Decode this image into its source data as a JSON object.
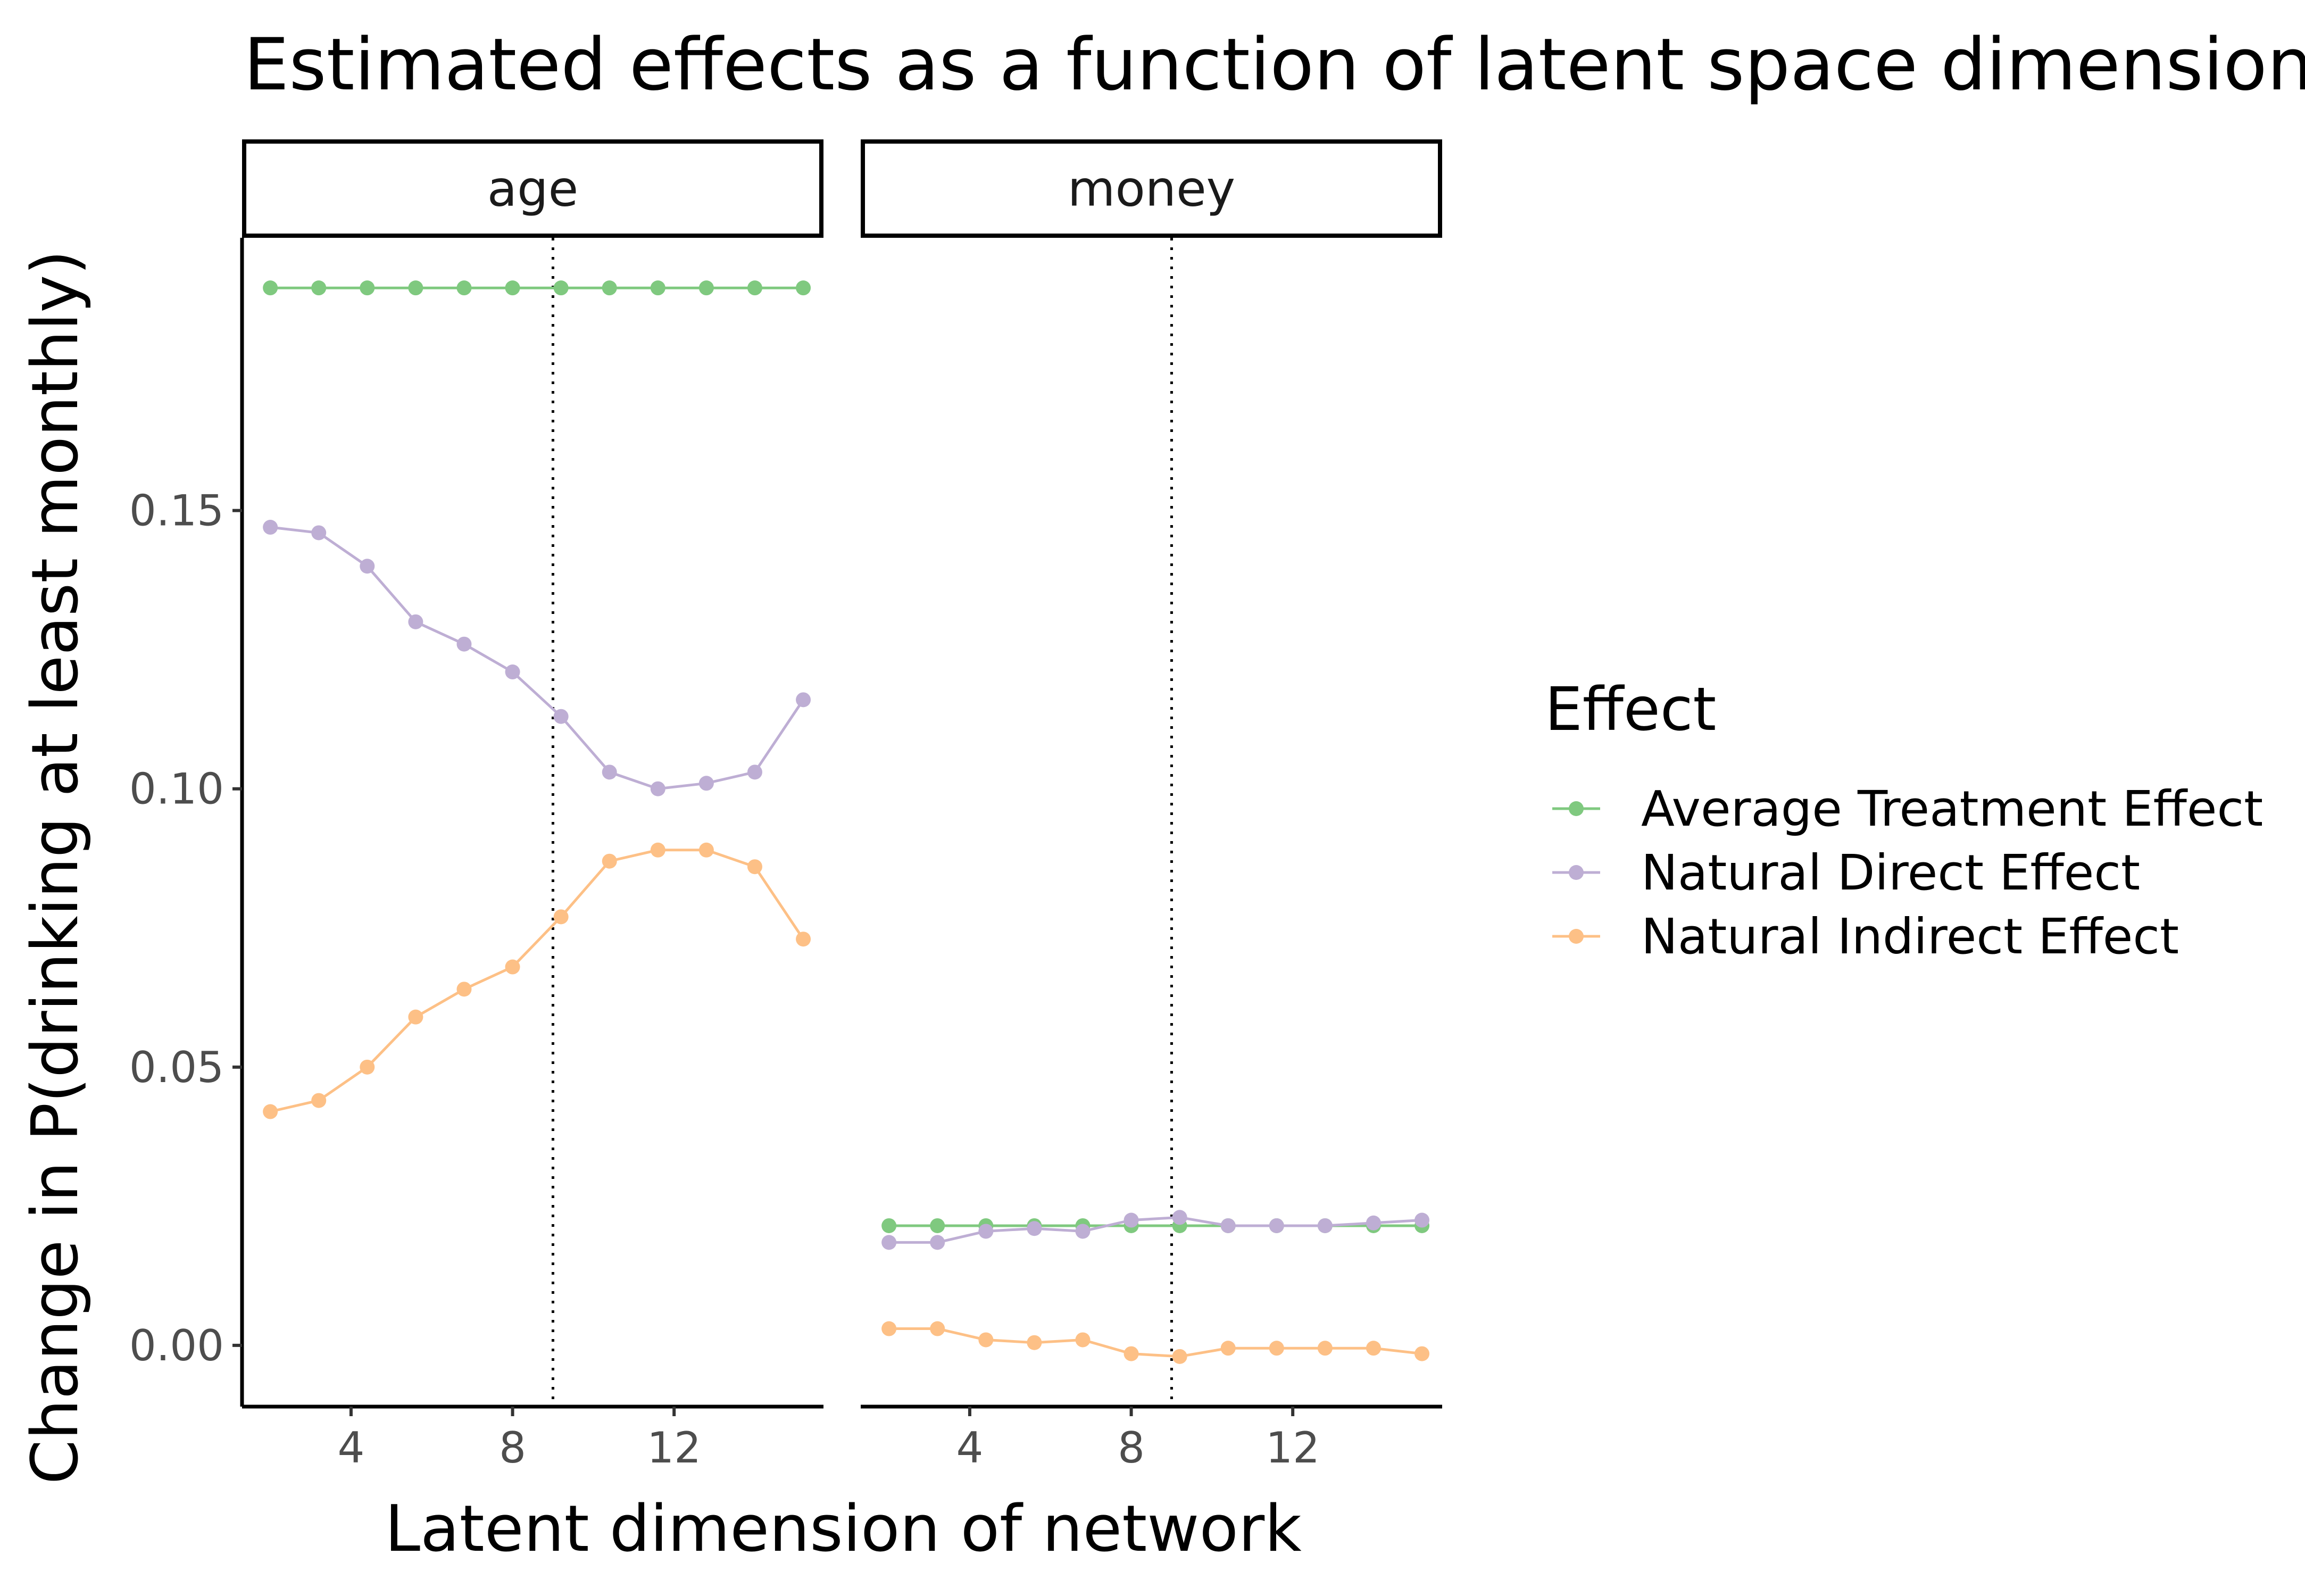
{
  "chart_data": {
    "type": "line",
    "title": "Estimated effects as a function of latent space dimension",
    "xlabel": "Latent dimension of network",
    "ylabel": "Change in P(drinking at least monthly)",
    "x_ticks": [
      4,
      8,
      12
    ],
    "y_ticks": [
      0.0,
      0.05,
      0.1,
      0.15
    ],
    "y_tick_labels": [
      "0.00",
      "0.05",
      "0.10",
      "0.15"
    ],
    "xlim": [
      1.3,
      15.7
    ],
    "ylim": [
      -0.011,
      0.199
    ],
    "grid": false,
    "legend": {
      "title": "Effect",
      "placement": "right"
    },
    "reference_line": {
      "x": 9,
      "style": "dotted"
    },
    "colors": {
      "Average Treatment Effect": "#7fc97f",
      "Natural Direct Effect": "#beaed4",
      "Natural Indirect Effect": "#fdc086"
    },
    "x": [
      2,
      3.2,
      4.4,
      5.6,
      6.8,
      8,
      9.2,
      10.4,
      11.6,
      12.8,
      14,
      15.2
    ],
    "facets": [
      {
        "label": "age",
        "series": [
          {
            "name": "Average Treatment Effect",
            "values": [
              0.19,
              0.19,
              0.19,
              0.19,
              0.19,
              0.19,
              0.19,
              0.19,
              0.19,
              0.19,
              0.19,
              0.19
            ]
          },
          {
            "name": "Natural Direct Effect",
            "values": [
              0.147,
              0.146,
              0.14,
              0.13,
              0.126,
              0.121,
              0.113,
              0.103,
              0.1,
              0.101,
              0.103,
              0.116
            ]
          },
          {
            "name": "Natural Indirect Effect",
            "values": [
              0.042,
              0.044,
              0.05,
              0.059,
              0.064,
              0.068,
              0.077,
              0.087,
              0.089,
              0.089,
              0.086,
              0.073
            ]
          }
        ]
      },
      {
        "label": "money",
        "series": [
          {
            "name": "Average Treatment Effect",
            "values": [
              0.0215,
              0.0215,
              0.0215,
              0.0215,
              0.0215,
              0.0215,
              0.0215,
              0.0215,
              0.0215,
              0.0215,
              0.0215,
              0.0215
            ]
          },
          {
            "name": "Natural Direct Effect",
            "values": [
              0.0185,
              0.0185,
              0.0205,
              0.021,
              0.0205,
              0.0225,
              0.023,
              0.0215,
              0.0215,
              0.0215,
              0.022,
              0.0225
            ]
          },
          {
            "name": "Natural Indirect Effect",
            "values": [
              0.003,
              0.003,
              0.001,
              0.0005,
              0.001,
              -0.0015,
              -0.002,
              -0.0005,
              -0.0005,
              -0.0005,
              -0.0005,
              -0.0015
            ]
          }
        ]
      }
    ]
  }
}
